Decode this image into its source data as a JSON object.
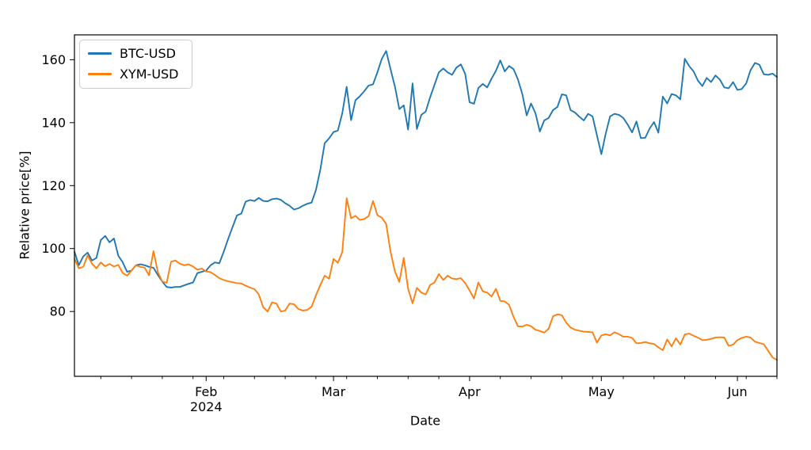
{
  "chart_data": {
    "type": "line",
    "title": "",
    "xlabel": "Date",
    "ylabel": "Relative price[%]",
    "grid": false,
    "legend_position": "upper-left",
    "x_start_date": "2024-01-02",
    "x_end_date": "2024-06-10",
    "x_frequency": "daily",
    "x_axis_year_label": "2024",
    "x_major_ticks": [
      {
        "label": "Feb",
        "day_offset": 30
      },
      {
        "label": "Mar",
        "day_offset": 59
      },
      {
        "label": "Apr",
        "day_offset": 90
      },
      {
        "label": "May",
        "day_offset": 120
      },
      {
        "label": "Jun",
        "day_offset": 151
      }
    ],
    "x_minor_tick_day_offsets": [
      6,
      13,
      20,
      27,
      34,
      41,
      48,
      55,
      62,
      69,
      76,
      83,
      97,
      104,
      111,
      118,
      125,
      132,
      139,
      146,
      153,
      160
    ],
    "y_ticks": [
      80,
      100,
      120,
      140,
      160
    ],
    "ylim": [
      59.4,
      167.9
    ],
    "series": [
      {
        "name": "BTC-USD",
        "color": "#1f77b4",
        "values": [
          99.0,
          94.7,
          97.5,
          98.7,
          96.2,
          97.0,
          102.7,
          104.0,
          102.0,
          103.2,
          97.7,
          95.6,
          92.6,
          93.0,
          94.7,
          95.0,
          94.7,
          94.2,
          93.9,
          91.6,
          89.5,
          87.8,
          87.6,
          87.8,
          87.8,
          88.3,
          88.8,
          89.2,
          92.2,
          92.6,
          93.0,
          94.7,
          95.6,
          95.3,
          99.0,
          103.0,
          106.8,
          110.5,
          111.1,
          114.9,
          115.4,
          115.1,
          116.1,
          115.1,
          115.0,
          115.7,
          115.9,
          115.5,
          114.4,
          113.6,
          112.4,
          112.8,
          113.6,
          114.2,
          114.6,
          118.6,
          125.0,
          133.5,
          135.0,
          137.0,
          137.5,
          143.0,
          151.4,
          140.8,
          147.1,
          148.4,
          150.0,
          151.8,
          152.2,
          156.0,
          160.3,
          162.8,
          157.0,
          151.4,
          144.3,
          145.5,
          137.8,
          152.5,
          138.0,
          142.5,
          143.5,
          148.0,
          152.0,
          156.0,
          157.2,
          156.0,
          155.2,
          157.5,
          158.5,
          155.5,
          146.5,
          146.0,
          151.0,
          152.3,
          151.2,
          154.0,
          156.5,
          159.8,
          156.3,
          158.0,
          157.0,
          153.8,
          149.1,
          142.3,
          146.1,
          143.0,
          137.2,
          140.7,
          141.5,
          144.0,
          145.0,
          149.0,
          148.7,
          144.0,
          143.2,
          141.9,
          140.7,
          142.8,
          142.0,
          136.0,
          130.0,
          136.5,
          142.0,
          142.8,
          142.5,
          141.5,
          139.4,
          136.9,
          140.4,
          135.1,
          135.2,
          138.1,
          140.2,
          136.8,
          148.3,
          146.1,
          149.1,
          148.7,
          147.4,
          160.3,
          158.0,
          156.3,
          153.4,
          151.6,
          154.2,
          152.9,
          155.0,
          153.7,
          151.2,
          150.9,
          152.9,
          150.4,
          150.7,
          152.5,
          156.7,
          159.0,
          158.4,
          155.4,
          155.2,
          155.6,
          154.5
        ]
      },
      {
        "name": "XYM-USD",
        "color": "#ff7f0e",
        "values": [
          96.8,
          93.7,
          94.2,
          97.8,
          95.2,
          93.7,
          95.6,
          94.4,
          95.1,
          94.3,
          94.8,
          92.2,
          91.4,
          93.0,
          94.7,
          94.2,
          93.9,
          91.5,
          99.2,
          92.5,
          89.5,
          89.1,
          95.8,
          96.2,
          95.2,
          94.7,
          95.0,
          94.3,
          93.3,
          93.6,
          92.7,
          92.5,
          91.6,
          90.6,
          90.0,
          89.6,
          89.3,
          89.0,
          88.9,
          88.2,
          87.6,
          87.1,
          85.4,
          81.3,
          80.0,
          82.9,
          82.5,
          80.0,
          80.3,
          82.5,
          82.3,
          80.8,
          80.3,
          80.5,
          81.5,
          85.1,
          88.4,
          91.4,
          90.4,
          96.7,
          95.5,
          98.9,
          116.0,
          109.6,
          110.4,
          109.1,
          109.4,
          110.3,
          115.1,
          110.6,
          109.8,
          107.8,
          99.0,
          92.7,
          89.4,
          97.0,
          87.2,
          82.6,
          87.5,
          86.0,
          85.4,
          88.4,
          89.2,
          91.9,
          90.0,
          91.4,
          90.5,
          90.3,
          90.6,
          89.0,
          86.7,
          84.1,
          89.2,
          86.4,
          86.0,
          84.8,
          87.2,
          83.4,
          83.2,
          82.1,
          78.3,
          75.3,
          75.2,
          75.8,
          75.3,
          74.2,
          73.8,
          73.3,
          74.5,
          78.5,
          79.1,
          78.8,
          76.5,
          74.9,
          74.2,
          73.9,
          73.6,
          73.5,
          73.4,
          70.1,
          72.4,
          72.8,
          72.4,
          73.4,
          72.8,
          72.0,
          72.0,
          71.6,
          69.9,
          70.0,
          70.3,
          69.9,
          69.7,
          68.6,
          67.7,
          71.1,
          68.9,
          71.5,
          69.5,
          72.7,
          73.0,
          72.3,
          71.7,
          70.9,
          71.0,
          71.3,
          71.7,
          71.8,
          71.7,
          69.1,
          69.5,
          70.9,
          71.6,
          72.0,
          71.7,
          70.4,
          70.0,
          69.6,
          67.5,
          65.4,
          64.6
        ]
      }
    ]
  }
}
